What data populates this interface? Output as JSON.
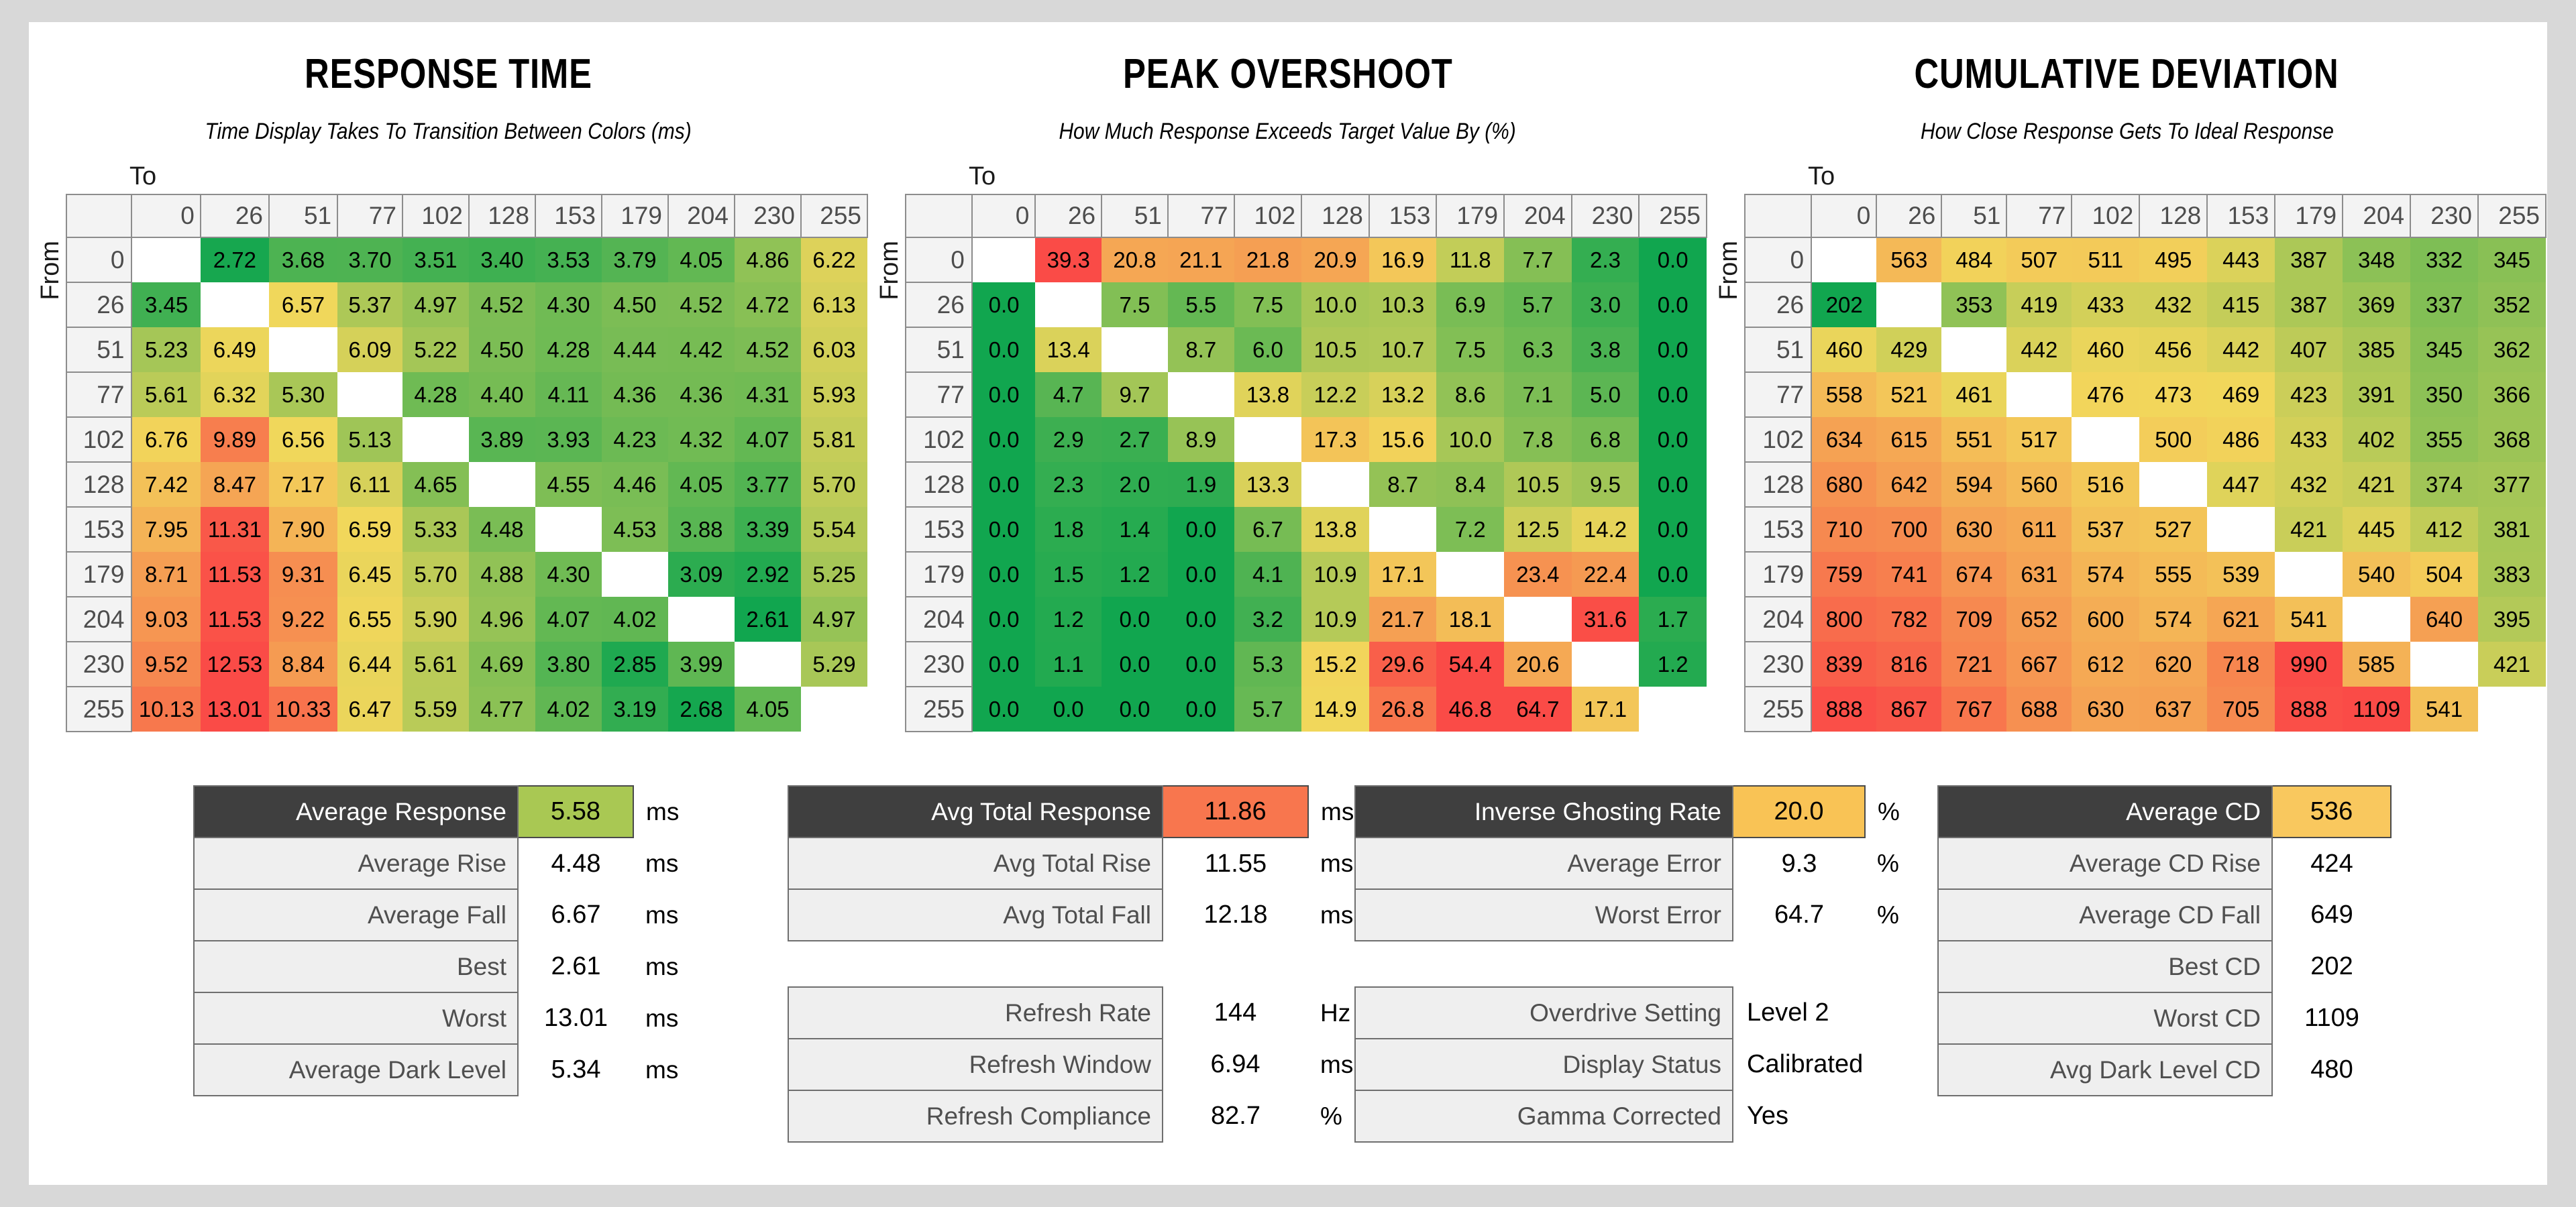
{
  "colors": {
    "heat_green": "#11a64f",
    "heat_yellow": "#f2d75b",
    "heat_red": "#fa4b47",
    "value_green": "#a9c853",
    "value_orange": "#f8764e",
    "value_amber": "#f9c355",
    "value_amber2": "#f9c85e"
  },
  "chart_data": [
    {
      "type": "heatmap",
      "title": "RESPONSE TIME",
      "subtitle": "Time Display Takes To Transition Between Colors (ms)",
      "x_axis_label": "To",
      "y_axis_label": "From",
      "unit": "ms",
      "decimals": 2,
      "categories": [
        0,
        26,
        51,
        77,
        102,
        128,
        153,
        179,
        204,
        230,
        255
      ],
      "color_scale": {
        "min": 2.61,
        "mid": 6.6,
        "max": 11.8
      },
      "matrix": [
        [
          null,
          2.72,
          3.68,
          3.7,
          3.51,
          3.4,
          3.53,
          3.79,
          4.05,
          4.86,
          6.22
        ],
        [
          3.45,
          null,
          6.57,
          5.37,
          4.97,
          4.52,
          4.3,
          4.5,
          4.52,
          4.72,
          6.13
        ],
        [
          5.23,
          6.49,
          null,
          6.09,
          5.22,
          4.5,
          4.28,
          4.44,
          4.42,
          4.52,
          6.03
        ],
        [
          5.61,
          6.32,
          5.3,
          null,
          4.28,
          4.4,
          4.11,
          4.36,
          4.36,
          4.31,
          5.93
        ],
        [
          6.76,
          9.89,
          6.56,
          5.13,
          null,
          3.89,
          3.93,
          4.23,
          4.32,
          4.07,
          5.81
        ],
        [
          7.42,
          8.47,
          7.17,
          6.11,
          4.65,
          null,
          4.55,
          4.46,
          4.05,
          3.77,
          5.7
        ],
        [
          7.95,
          11.31,
          7.9,
          6.59,
          5.33,
          4.48,
          null,
          4.53,
          3.88,
          3.39,
          5.54
        ],
        [
          8.71,
          11.53,
          9.31,
          6.45,
          5.7,
          4.88,
          4.3,
          null,
          3.09,
          2.92,
          5.25
        ],
        [
          9.03,
          11.53,
          9.22,
          6.55,
          5.9,
          4.96,
          4.07,
          4.02,
          null,
          2.61,
          4.97
        ],
        [
          9.52,
          12.53,
          8.84,
          6.44,
          5.61,
          4.69,
          3.8,
          2.85,
          3.99,
          null,
          5.29
        ],
        [
          10.13,
          13.01,
          10.33,
          6.47,
          5.59,
          4.77,
          4.02,
          3.19,
          2.68,
          4.05,
          null
        ]
      ]
    },
    {
      "type": "heatmap",
      "title": "PEAK OVERSHOOT",
      "subtitle": "How Much Response Exceeds Target Value By (%)",
      "x_axis_label": "To",
      "y_axis_label": "From",
      "unit": "%",
      "decimals": 1,
      "categories": [
        0,
        26,
        51,
        77,
        102,
        128,
        153,
        179,
        204,
        230,
        255
      ],
      "color_scale": {
        "min": 0,
        "mid": 15,
        "max": 32
      },
      "matrix": [
        [
          null,
          39.3,
          20.8,
          21.1,
          21.8,
          20.9,
          16.9,
          11.8,
          7.7,
          2.3,
          0.0
        ],
        [
          0.0,
          null,
          7.5,
          5.5,
          7.5,
          10.0,
          10.3,
          6.9,
          5.7,
          3.0,
          0.0
        ],
        [
          0.0,
          13.4,
          null,
          8.7,
          6.0,
          10.5,
          10.7,
          7.5,
          6.3,
          3.8,
          0.0
        ],
        [
          0.0,
          4.7,
          9.7,
          null,
          13.8,
          12.2,
          13.2,
          8.6,
          7.1,
          5.0,
          0.0
        ],
        [
          0.0,
          2.9,
          2.7,
          8.9,
          null,
          17.3,
          15.6,
          10.0,
          7.8,
          6.8,
          0.0
        ],
        [
          0.0,
          2.3,
          2.0,
          1.9,
          13.3,
          null,
          8.7,
          8.4,
          10.5,
          9.5,
          0.0
        ],
        [
          0.0,
          1.8,
          1.4,
          0.0,
          6.7,
          13.8,
          null,
          7.2,
          12.5,
          14.2,
          0.0
        ],
        [
          0.0,
          1.5,
          1.2,
          0.0,
          4.1,
          10.9,
          17.1,
          null,
          23.4,
          22.4,
          0.0
        ],
        [
          0.0,
          1.2,
          0.0,
          0.0,
          3.2,
          10.9,
          21.7,
          18.1,
          null,
          31.6,
          1.7
        ],
        [
          0.0,
          1.1,
          0.0,
          0.0,
          5.3,
          15.2,
          29.6,
          54.4,
          20.6,
          null,
          1.2
        ],
        [
          0.0,
          0.0,
          0.0,
          0.0,
          5.7,
          14.9,
          26.8,
          46.8,
          64.7,
          17.1,
          null
        ]
      ]
    },
    {
      "type": "heatmap",
      "title": "CUMULATIVE DEVIATION",
      "subtitle": "How Close Response Gets To Ideal Response",
      "x_axis_label": "To",
      "y_axis_label": "From",
      "unit": "",
      "decimals": 0,
      "categories": [
        0,
        26,
        51,
        77,
        102,
        128,
        153,
        179,
        204,
        230,
        255
      ],
      "color_scale": {
        "min": 202,
        "mid": 470,
        "max": 900
      },
      "matrix": [
        [
          null,
          563,
          484,
          507,
          511,
          495,
          443,
          387,
          348,
          332,
          345
        ],
        [
          202,
          null,
          353,
          419,
          433,
          432,
          415,
          387,
          369,
          337,
          352
        ],
        [
          460,
          429,
          null,
          442,
          460,
          456,
          442,
          407,
          385,
          345,
          362
        ],
        [
          558,
          521,
          461,
          null,
          476,
          473,
          469,
          423,
          391,
          350,
          366
        ],
        [
          634,
          615,
          551,
          517,
          null,
          500,
          486,
          433,
          402,
          355,
          368
        ],
        [
          680,
          642,
          594,
          560,
          516,
          null,
          447,
          432,
          421,
          374,
          377
        ],
        [
          710,
          700,
          630,
          611,
          537,
          527,
          null,
          421,
          445,
          412,
          381
        ],
        [
          759,
          741,
          674,
          631,
          574,
          555,
          539,
          null,
          540,
          504,
          383
        ],
        [
          800,
          782,
          709,
          652,
          600,
          574,
          621,
          541,
          null,
          640,
          395
        ],
        [
          839,
          816,
          721,
          667,
          612,
          620,
          718,
          990,
          585,
          null,
          421
        ],
        [
          888,
          867,
          767,
          688,
          630,
          637,
          705,
          888,
          1109,
          541,
          null
        ]
      ]
    },
    {
      "type": "table",
      "id": "response-summary",
      "rows": [
        {
          "label": "Average Response",
          "value": "5.58",
          "unit": "ms",
          "header": true,
          "value_bg": "#a9c853"
        },
        {
          "label": "Average Rise",
          "value": "4.48",
          "unit": "ms"
        },
        {
          "label": "Average Fall",
          "value": "6.67",
          "unit": "ms"
        },
        {
          "label": "Best",
          "value": "2.61",
          "unit": "ms"
        },
        {
          "label": "Worst",
          "value": "13.01",
          "unit": "ms"
        },
        {
          "label": "Average Dark Level",
          "value": "5.34",
          "unit": "ms"
        }
      ]
    },
    {
      "type": "table",
      "id": "total-response-summary",
      "rows": [
        {
          "label": "Avg Total Response",
          "value": "11.86",
          "unit": "ms",
          "header": true,
          "value_bg": "#f8764e"
        },
        {
          "label": "Avg Total Rise",
          "value": "11.55",
          "unit": "ms"
        },
        {
          "label": "Avg Total Fall",
          "value": "12.18",
          "unit": "ms"
        }
      ]
    },
    {
      "type": "table",
      "id": "refresh-summary",
      "rows": [
        {
          "label": "Refresh Rate",
          "value": "144",
          "unit": "Hz"
        },
        {
          "label": "Refresh Window",
          "value": "6.94",
          "unit": "ms"
        },
        {
          "label": "Refresh Compliance",
          "value": "82.7",
          "unit": "%"
        }
      ]
    },
    {
      "type": "table",
      "id": "overshoot-summary",
      "rows": [
        {
          "label": "Inverse Ghosting Rate",
          "value": "20.0",
          "unit": "%",
          "header": true,
          "value_bg": "#f9c355"
        },
        {
          "label": "Average Error",
          "value": "9.3",
          "unit": "%"
        },
        {
          "label": "Worst Error",
          "value": "64.7",
          "unit": "%"
        }
      ]
    },
    {
      "type": "table",
      "id": "settings-summary",
      "rows": [
        {
          "label": "Overdrive Setting",
          "value": "Level 2",
          "text_value": true
        },
        {
          "label": "Display Status",
          "value": "Calibrated",
          "text_value": true
        },
        {
          "label": "Gamma Corrected",
          "value": "Yes",
          "text_value": true
        }
      ]
    },
    {
      "type": "table",
      "id": "cd-summary",
      "rows": [
        {
          "label": "Average CD",
          "value": "536",
          "header": true,
          "value_bg": "#f9c85e"
        },
        {
          "label": "Average CD Rise",
          "value": "424"
        },
        {
          "label": "Average CD Fall",
          "value": "649"
        },
        {
          "label": "Best CD",
          "value": "202"
        },
        {
          "label": "Worst CD",
          "value": "1109"
        },
        {
          "label": "Avg Dark Level CD",
          "value": "480"
        }
      ]
    }
  ]
}
